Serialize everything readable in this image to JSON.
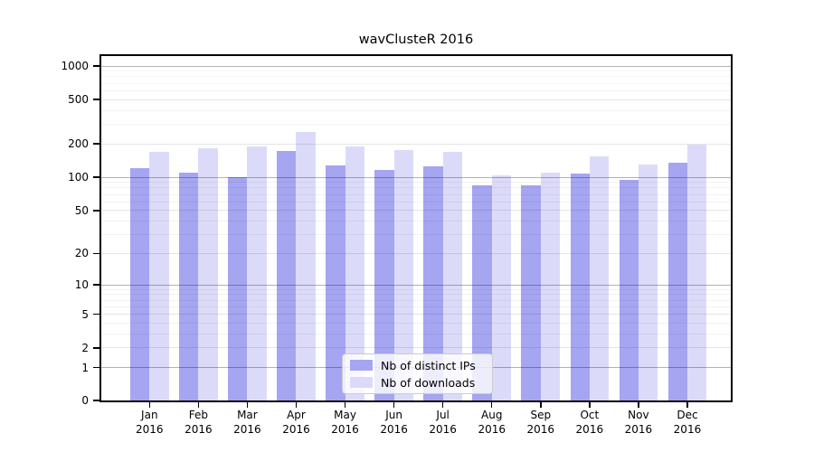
{
  "title": "wavClusteR 2016",
  "chart_data": {
    "type": "bar",
    "title": "wavClusteR 2016",
    "categories": [
      "Jan",
      "Feb",
      "Mar",
      "Apr",
      "May",
      "Jun",
      "Jul",
      "Aug",
      "Sep",
      "Oct",
      "Nov",
      "Dec"
    ],
    "x_year_label": "2016",
    "series": [
      {
        "name": "Nb of distinct IPs",
        "color": "#a5a5f1",
        "values": [
          120,
          110,
          100,
          173,
          128,
          117,
          125,
          84,
          84,
          109,
          95,
          135
        ]
      },
      {
        "name": "Nb of downloads",
        "color": "#dbdbf9",
        "values": [
          168,
          184,
          190,
          258,
          190,
          176,
          168,
          104,
          110,
          155,
          130,
          197
        ]
      }
    ],
    "yscale": "log10(value+1)",
    "ytick_labels": [
      "0",
      "1",
      "2",
      "5",
      "10",
      "20",
      "50",
      "100",
      "200",
      "500",
      "1000"
    ],
    "yticks": [
      0,
      1,
      2,
      5,
      10,
      20,
      50,
      100,
      200,
      500,
      1000
    ],
    "ylim": [
      0,
      1000
    ],
    "grid": "horizontal major + minor log gridlines drawn over bars",
    "legend_position": "bottom-center",
    "colors": {
      "bar_dark": "#a5a5f1",
      "bar_light": "#dbdbf9",
      "grid_major": "#b3b3b3",
      "grid_mid": "#e6e6e6",
      "grid_minor": "#f3f3f3",
      "axis": "#000000",
      "background": "#ffffff"
    }
  },
  "legend": {
    "items": [
      {
        "label": "Nb of distinct IPs"
      },
      {
        "label": "Nb of downloads"
      }
    ]
  }
}
